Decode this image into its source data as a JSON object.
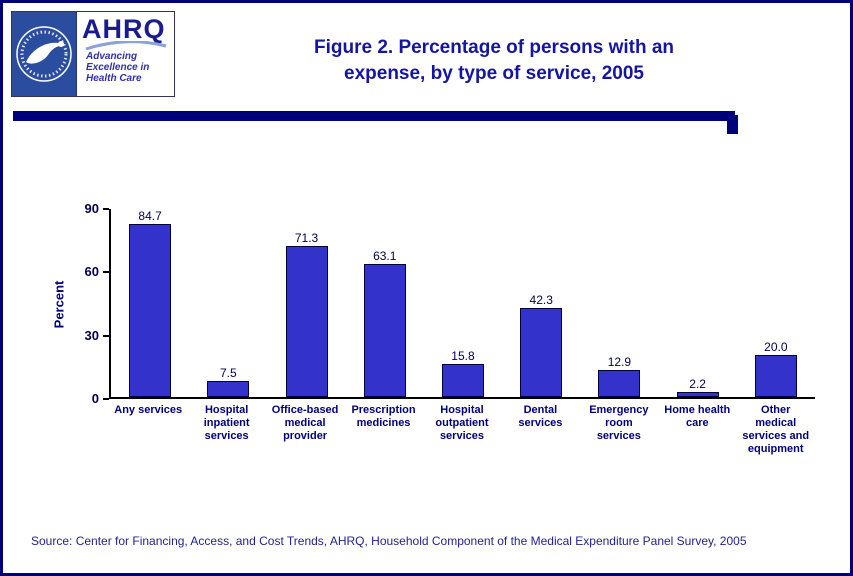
{
  "header": {
    "title_line1": "Figure 2. Percentage of persons with an",
    "title_line2": "expense, by type of service, 2005",
    "logos": {
      "hhs_seal": "hhs-seal",
      "ahrq_name": "AHRQ",
      "ahrq_tagline1": "Advancing",
      "ahrq_tagline2": "Excellence in",
      "ahrq_tagline3": "Health Care"
    }
  },
  "chart_data": {
    "type": "bar",
    "title": "Figure 2. Percentage of persons with an expense, by type of service, 2005",
    "ylabel": "Percent",
    "xlabel": "",
    "ylim": [
      0,
      90
    ],
    "yticks": [
      0,
      30,
      60,
      90
    ],
    "grid": false,
    "legend": "none",
    "bar_color": "#3333cc",
    "bar_border_color": "#00003b",
    "categories": [
      "Any services",
      "Hospital inpatient services",
      "Office-based medical provider",
      "Prescription medicines",
      "Hospital outpatient services",
      "Dental services",
      "Emergency room services",
      "Home health care",
      "Other medical services and equipment"
    ],
    "category_labels": [
      [
        "Any services"
      ],
      [
        "Hospital",
        "inpatient",
        "services"
      ],
      [
        "Office-based",
        "medical",
        "provider"
      ],
      [
        "Prescription",
        "medicines"
      ],
      [
        "Hospital",
        "outpatient",
        "services"
      ],
      [
        "Dental",
        "services"
      ],
      [
        "Emergency",
        "room",
        "services"
      ],
      [
        "Home health",
        "care"
      ],
      [
        "Other",
        "medical",
        "services and",
        "equipment"
      ]
    ],
    "values": [
      84.7,
      7.5,
      71.3,
      63.1,
      15.8,
      42.3,
      12.9,
      2.2,
      20.0
    ]
  },
  "footer": {
    "source": "Source: Center for Financing, Access, and Cost Trends, AHRQ, Household Component of the Medical Expenditure Panel Survey, 2005"
  },
  "colors": {
    "accent_navy": "#00007b",
    "title_blue": "#1515a0",
    "label_navy": "#00004d"
  }
}
